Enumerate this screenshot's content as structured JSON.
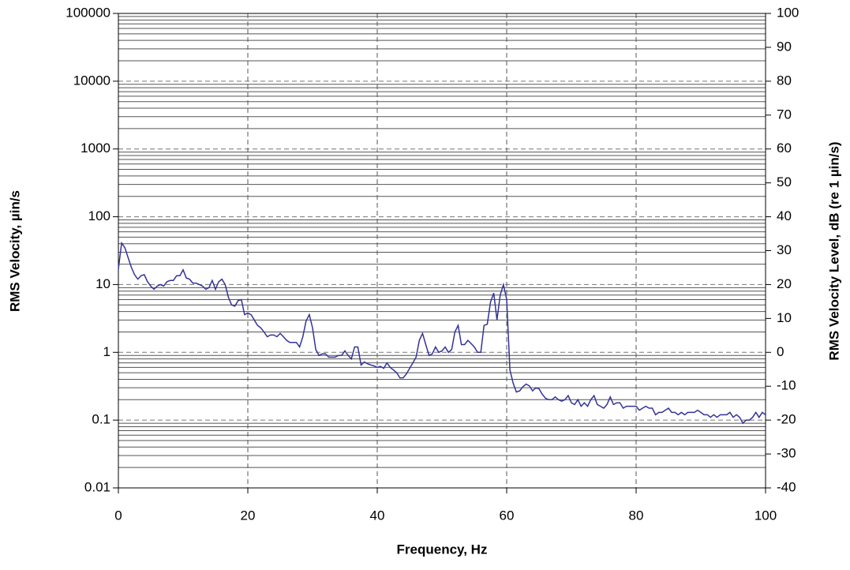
{
  "chart_data": {
    "type": "line",
    "xlabel": "Frequency, Hz",
    "ylabel": "RMS Velocity,  µin/s",
    "y2label": "RMS Velocity Level, dB (re 1   µin/s)",
    "xlim": [
      0,
      100
    ],
    "xticks": [
      0,
      20,
      40,
      60,
      80,
      100
    ],
    "ylim": [
      0.01,
      100000
    ],
    "yticks": [
      0.01,
      0.1,
      1,
      10,
      100,
      1000,
      10000,
      100000
    ],
    "ylog": true,
    "y2lim": [
      -40,
      100
    ],
    "y2ticks": [
      -40,
      -30,
      -20,
      -10,
      0,
      10,
      20,
      30,
      40,
      50,
      60,
      70,
      80,
      90,
      100
    ],
    "grid": true,
    "minor_grid": true,
    "x": [
      0,
      0.5,
      1,
      1.5,
      2,
      2.5,
      3,
      3.5,
      4,
      4.5,
      5,
      5.5,
      6,
      6.5,
      7,
      7.5,
      8,
      8.5,
      9,
      9.5,
      10,
      10.5,
      11,
      11.5,
      12,
      12.5,
      13,
      13.5,
      14,
      14.5,
      15,
      15.5,
      16,
      16.5,
      17,
      17.5,
      18,
      18.5,
      19,
      19.5,
      20,
      20.5,
      21,
      21.5,
      22,
      22.5,
      23,
      23.5,
      24,
      24.5,
      25,
      25.5,
      26,
      26.5,
      27,
      27.5,
      28,
      28.5,
      29,
      29.5,
      30,
      30.5,
      31,
      31.5,
      32,
      32.5,
      33,
      33.5,
      34,
      34.5,
      35,
      35.5,
      36,
      36.5,
      37,
      37.5,
      38,
      38.5,
      39,
      39.5,
      40,
      40.5,
      41,
      41.5,
      42,
      42.5,
      43,
      43.5,
      44,
      44.5,
      45,
      45.5,
      46,
      46.5,
      47,
      47.5,
      48,
      48.5,
      49,
      49.5,
      50,
      50.5,
      51,
      51.5,
      52,
      52.5,
      53,
      53.5,
      54,
      54.5,
      55,
      55.5,
      56,
      56.5,
      57,
      57.5,
      58,
      58.5,
      59,
      59.5,
      60,
      60.5,
      61,
      61.5,
      62,
      62.5,
      63,
      63.5,
      64,
      64.5,
      65,
      65.5,
      66,
      66.5,
      67,
      67.5,
      68,
      68.5,
      69,
      69.5,
      70,
      70.5,
      71,
      71.5,
      72,
      72.5,
      73,
      73.5,
      74,
      74.5,
      75,
      75.5,
      76,
      76.5,
      77,
      77.5,
      78,
      78.5,
      79,
      79.5,
      80,
      80.5,
      81,
      81.5,
      82,
      82.5,
      83,
      83.5,
      84,
      84.5,
      85,
      85.5,
      86,
      86.5,
      87,
      87.5,
      88,
      88.5,
      89,
      89.5,
      90,
      90.5,
      91,
      91.5,
      92,
      92.5,
      93,
      93.5,
      94,
      94.5,
      95,
      95.5,
      96,
      96.5,
      97,
      97.5,
      98,
      98.5,
      99,
      99.5,
      100
    ],
    "series": [
      {
        "color": "#333399",
        "values": [
          17,
          41,
          35,
          25,
          18,
          14,
          12,
          13.5,
          14,
          11,
          9.5,
          8.5,
          9.5,
          10,
          9.5,
          11,
          11.5,
          11.5,
          13.5,
          13.5,
          16.5,
          12.5,
          12,
          10.5,
          10.5,
          10,
          9.5,
          8.5,
          9,
          11.5,
          8.5,
          11,
          12,
          10,
          6.5,
          5,
          4.8,
          5.8,
          6,
          3.6,
          3.8,
          3.6,
          3,
          2.5,
          2.3,
          2,
          1.7,
          1.8,
          1.8,
          1.7,
          1.9,
          1.7,
          1.5,
          1.4,
          1.4,
          1.4,
          1.2,
          1.7,
          2.9,
          3.6,
          2.3,
          1.1,
          0.9,
          0.95,
          0.95,
          0.85,
          0.85,
          0.85,
          0.9,
          0.9,
          1.05,
          0.9,
          0.8,
          1.2,
          1.2,
          0.65,
          0.72,
          0.68,
          0.65,
          0.63,
          0.6,
          0.62,
          0.58,
          0.7,
          0.6,
          0.55,
          0.5,
          0.42,
          0.42,
          0.48,
          0.58,
          0.7,
          0.85,
          1.5,
          1.9,
          1.3,
          0.9,
          0.95,
          1.2,
          1.0,
          1.05,
          1.2,
          1.0,
          1.1,
          2.0,
          2.5,
          1.3,
          1.3,
          1.5,
          1.35,
          1.2,
          1.0,
          1.0,
          2.5,
          2.6,
          5.5,
          7.5,
          3,
          7,
          10,
          6,
          0.55,
          0.35,
          0.26,
          0.27,
          0.31,
          0.34,
          0.32,
          0.27,
          0.3,
          0.29,
          0.24,
          0.21,
          0.2,
          0.2,
          0.22,
          0.2,
          0.19,
          0.2,
          0.23,
          0.18,
          0.17,
          0.2,
          0.16,
          0.18,
          0.16,
          0.2,
          0.23,
          0.17,
          0.16,
          0.15,
          0.17,
          0.22,
          0.17,
          0.18,
          0.18,
          0.15,
          0.16,
          0.16,
          0.16,
          0.16,
          0.14,
          0.15,
          0.16,
          0.15,
          0.15,
          0.12,
          0.13,
          0.13,
          0.14,
          0.15,
          0.13,
          0.13,
          0.12,
          0.13,
          0.12,
          0.13,
          0.13,
          0.13,
          0.14,
          0.13,
          0.12,
          0.12,
          0.11,
          0.12,
          0.11,
          0.12,
          0.12,
          0.12,
          0.13,
          0.11,
          0.12,
          0.11,
          0.09,
          0.1,
          0.1,
          0.11,
          0.13,
          0.11,
          0.13,
          0.12
        ]
      }
    ]
  }
}
